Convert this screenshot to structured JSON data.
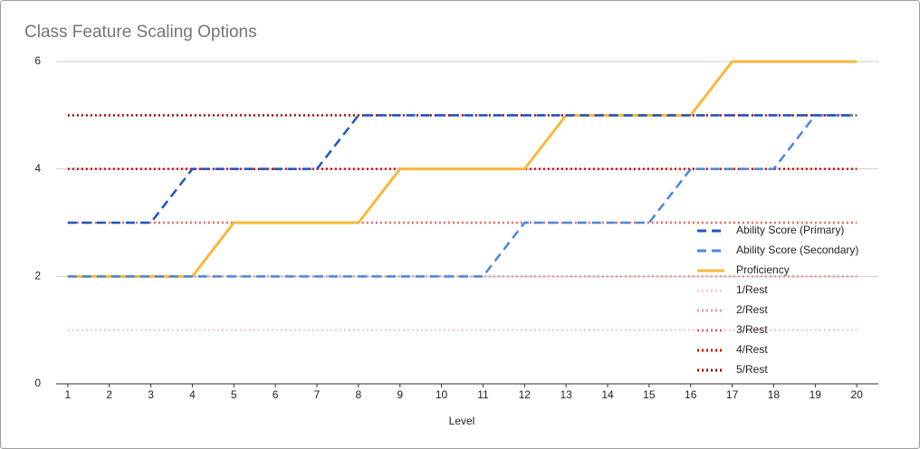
{
  "chart_data": {
    "type": "line",
    "title": "Class Feature Scaling Options",
    "x_label": "Level",
    "x": [
      1,
      2,
      3,
      4,
      5,
      6,
      7,
      8,
      9,
      10,
      11,
      12,
      13,
      14,
      15,
      16,
      17,
      18,
      19,
      20
    ],
    "xlim": [
      0.72,
      20.52
    ],
    "xticks": [
      1,
      2,
      3,
      4,
      5,
      6,
      7,
      8,
      9,
      10,
      11,
      12,
      13,
      14,
      15,
      16,
      17,
      18,
      19,
      20
    ],
    "ylim": [
      0,
      6
    ],
    "yticks": [
      0,
      2,
      4,
      6
    ],
    "grid": true,
    "legend": "right",
    "series": [
      {
        "name": "Ability Score (Primary)",
        "color": "#1c55c2",
        "dash": "dashed",
        "values": [
          3,
          3,
          3,
          4,
          4,
          4,
          4,
          5,
          5,
          5,
          5,
          5,
          5,
          5,
          5,
          5,
          5,
          5,
          5,
          5
        ]
      },
      {
        "name": "Ability Score (Secondary)",
        "color": "#4a86e0",
        "dash": "dashed",
        "values": [
          2,
          2,
          2,
          2,
          2,
          2,
          2,
          2,
          2,
          2,
          2,
          3,
          3,
          3,
          3,
          4,
          4,
          4,
          5,
          5
        ]
      },
      {
        "name": "Proficiency",
        "color": "#f5b93a",
        "dash": "solid",
        "values": [
          2,
          2,
          2,
          2,
          3,
          3,
          3,
          3,
          4,
          4,
          4,
          4,
          5,
          5,
          5,
          5,
          6,
          6,
          6,
          6
        ]
      },
      {
        "name": "1/Rest",
        "color": "#f4cccc",
        "dash": "dotted",
        "values": [
          1,
          1,
          1,
          1,
          1,
          1,
          1,
          1,
          1,
          1,
          1,
          1,
          1,
          1,
          1,
          1,
          1,
          1,
          1,
          1
        ]
      },
      {
        "name": "2/Rest",
        "color": "#ea9999",
        "dash": "dotted",
        "values": [
          2,
          2,
          2,
          2,
          2,
          2,
          2,
          2,
          2,
          2,
          2,
          2,
          2,
          2,
          2,
          2,
          2,
          2,
          2,
          2
        ]
      },
      {
        "name": "3/Rest",
        "color": "#e06666",
        "dash": "dotted",
        "values": [
          3,
          3,
          3,
          3,
          3,
          3,
          3,
          3,
          3,
          3,
          3,
          3,
          3,
          3,
          3,
          3,
          3,
          3,
          3,
          3
        ]
      },
      {
        "name": "4/Rest",
        "color": "#cc0000",
        "dash": "dotted",
        "values": [
          4,
          4,
          4,
          4,
          4,
          4,
          4,
          4,
          4,
          4,
          4,
          4,
          4,
          4,
          4,
          4,
          4,
          4,
          4,
          4
        ]
      },
      {
        "name": "5/Rest",
        "color": "#990000",
        "dash": "dotted",
        "values": [
          5,
          5,
          5,
          5,
          5,
          5,
          5,
          5,
          5,
          5,
          5,
          5,
          5,
          5,
          5,
          5,
          5,
          5,
          5,
          5
        ]
      }
    ]
  }
}
